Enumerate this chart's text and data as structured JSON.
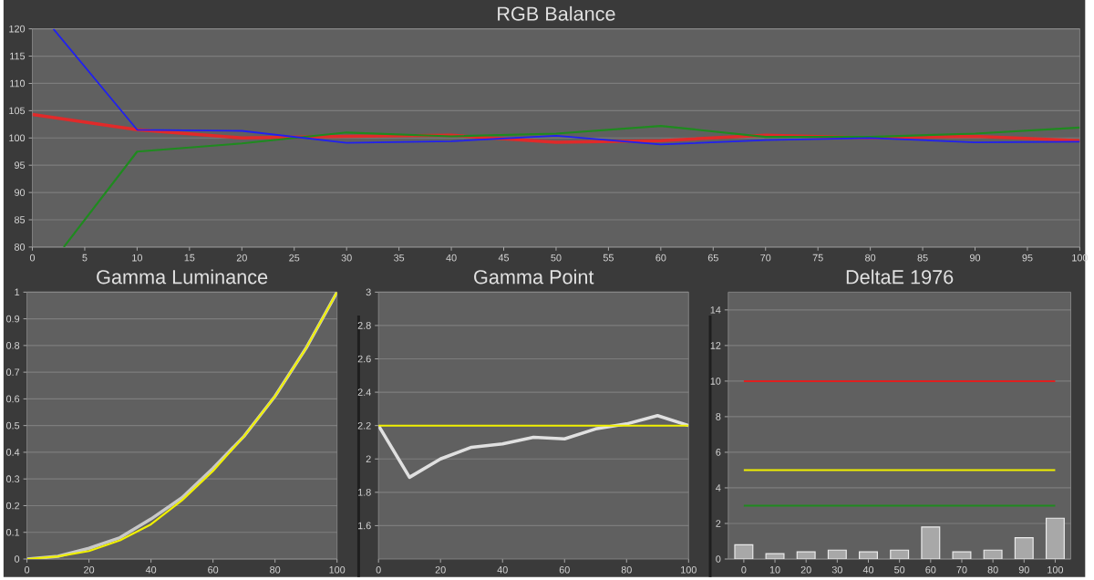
{
  "chart_data": [
    {
      "type": "line",
      "title": "RGB Balance",
      "xlim": [
        0,
        100
      ],
      "ylim": [
        80,
        120
      ],
      "xticks": [
        0,
        5,
        10,
        15,
        20,
        25,
        30,
        35,
        40,
        45,
        50,
        55,
        60,
        65,
        70,
        75,
        80,
        85,
        90,
        95,
        100
      ],
      "yticks": [
        80,
        85,
        90,
        95,
        100,
        105,
        110,
        115,
        120
      ],
      "grid": "y",
      "series": [
        {
          "color": "#e02a2a",
          "x": [
            0,
            10,
            20,
            30,
            40,
            50,
            60,
            70,
            80,
            90,
            100
          ],
          "values": [
            104.3,
            101.5,
            100,
            100.3,
            100.5,
            99.2,
            99.5,
            100.5,
            100,
            100.3,
            99.5
          ]
        },
        {
          "color": "#1f8a1f",
          "x": [
            3,
            10,
            20,
            30,
            40,
            50,
            60,
            70,
            80,
            90,
            100
          ],
          "values": [
            80,
            97.5,
            99,
            101,
            100.3,
            100.8,
            102.2,
            100.2,
            100.2,
            100.8,
            101.9
          ]
        },
        {
          "color": "#2020f0",
          "x": [
            2,
            10,
            20,
            30,
            40,
            50,
            60,
            70,
            80,
            90,
            100
          ],
          "values": [
            120,
            101.5,
            101.3,
            99.1,
            99.4,
            100.4,
            98.8,
            99.6,
            100,
            99.2,
            99.3
          ]
        }
      ]
    },
    {
      "type": "line",
      "title": "Gamma Luminance",
      "xlim": [
        0,
        100
      ],
      "ylim": [
        0,
        1
      ],
      "xticks": [
        0,
        20,
        40,
        60,
        80,
        100
      ],
      "yticks": [
        0,
        0.1,
        0.2,
        0.3,
        0.4,
        0.5,
        0.6,
        0.7,
        0.8,
        0.9,
        1
      ],
      "grid": "y",
      "x": [
        0,
        10,
        20,
        30,
        40,
        50,
        60,
        70,
        80,
        90,
        100
      ],
      "series": [
        {
          "color": "#c8c8c8",
          "values": [
            0,
            0.01,
            0.04,
            0.08,
            0.15,
            0.23,
            0.34,
            0.46,
            0.61,
            0.79,
            1
          ]
        },
        {
          "color": "#f0f000",
          "values": [
            0,
            0.01,
            0.03,
            0.07,
            0.13,
            0.22,
            0.33,
            0.46,
            0.61,
            0.79,
            1
          ]
        }
      ]
    },
    {
      "type": "line",
      "title": "Gamma Point",
      "xlim": [
        0,
        100
      ],
      "ylim": [
        1.4,
        3
      ],
      "xticks": [
        0,
        20,
        40,
        60,
        80,
        100
      ],
      "yticks": [
        1.6,
        1.8,
        2,
        2.2,
        2.4,
        2.6,
        2.8,
        3
      ],
      "grid": "y",
      "x": [
        0,
        10,
        20,
        30,
        40,
        50,
        60,
        70,
        80,
        90,
        100
      ],
      "series": [
        {
          "color": "#e0e0e0",
          "values": [
            2.2,
            1.89,
            2.0,
            2.07,
            2.09,
            2.13,
            2.12,
            2.18,
            2.21,
            2.26,
            2.2
          ]
        }
      ],
      "ref_lines": [
        {
          "axis": "y",
          "value": 2.2,
          "color": "#f0f000"
        }
      ]
    },
    {
      "type": "bar",
      "title": "DeltaE 1976",
      "categories": [
        "0",
        "10",
        "20",
        "30",
        "40",
        "50",
        "60",
        "70",
        "80",
        "90",
        "100"
      ],
      "values": [
        0.8,
        0.3,
        0.4,
        0.5,
        0.4,
        0.5,
        1.8,
        0.4,
        0.5,
        1.2,
        2.3
      ],
      "color": "#a8a8a8",
      "ylim": [
        0,
        15
      ],
      "yticks": [
        0,
        2,
        4,
        6,
        8,
        10,
        12,
        14
      ],
      "grid": "y",
      "ref_lines": [
        {
          "axis": "y",
          "value": 10,
          "color": "#e02020"
        },
        {
          "axis": "y",
          "value": 5,
          "color": "#f0f000"
        },
        {
          "axis": "y",
          "value": 3,
          "color": "#1f8a1f"
        }
      ]
    }
  ]
}
